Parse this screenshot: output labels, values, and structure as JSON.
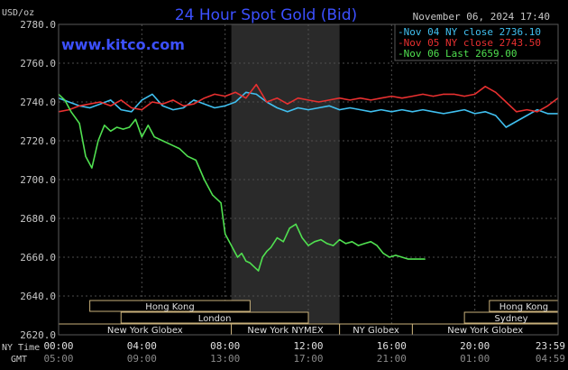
{
  "chart_data": {
    "type": "line",
    "title": "24 Hour Spot Gold (Bid)",
    "watermark": "www.kitco.com",
    "units_label": "USD/oz",
    "timestamp": "November 06, 2024 17:40",
    "ylim": [
      2620,
      2780
    ],
    "y_ticks": [
      "2780.0",
      "2760.0",
      "2740.0",
      "2720.0",
      "2700.0",
      "2680.0",
      "2660.0",
      "2640.0",
      "2620.0"
    ],
    "x_ticks_ny": [
      "00:00",
      "04:00",
      "08:00",
      "12:00",
      "16:00",
      "20:00",
      "23:59"
    ],
    "x_ticks_gmt": [
      "05:00",
      "09:00",
      "13:00",
      "17:00",
      "21:00",
      "01:00",
      "04:59"
    ],
    "x_label_ny": "NY Time",
    "x_label_gmt": "GMT",
    "grid": true,
    "legend_position": "top-right",
    "colors": {
      "background": "#000000",
      "grid": "#4d4d4d",
      "title": "#3c50ff",
      "watermark": "#3c50ff",
      "axis_text": "#c8c8c8",
      "nymex_band": "#2a2a2a",
      "session_box": "#c8b07a"
    },
    "series": [
      {
        "name": "Nov 04 NY close 2736.10",
        "color": "#40c0f0",
        "x": [
          0,
          0.5,
          1,
          1.5,
          2,
          2.5,
          3,
          3.5,
          4,
          4.5,
          5,
          5.5,
          6,
          6.5,
          7,
          7.5,
          8,
          8.5,
          9,
          9.5,
          10,
          10.5,
          11,
          11.5,
          12,
          12.5,
          13,
          13.5,
          14,
          14.5,
          15,
          15.5,
          16,
          16.5,
          17,
          17.5,
          18,
          18.5,
          19,
          19.5,
          20,
          20.5,
          21,
          21.5,
          22,
          22.5,
          23,
          23.5,
          23.99
        ],
        "values": [
          2742,
          2740,
          2738,
          2737,
          2739,
          2741,
          2736,
          2735,
          2741,
          2744,
          2738,
          2736,
          2737,
          2741,
          2739,
          2737,
          2738,
          2740,
          2745,
          2744,
          2740,
          2737,
          2735,
          2737,
          2736,
          2737,
          2738,
          2736,
          2737,
          2736,
          2735,
          2736,
          2735,
          2736,
          2735,
          2736,
          2735,
          2734,
          2735,
          2736,
          2734,
          2735,
          2733,
          2727,
          2730,
          2733,
          2736,
          2734,
          2734
        ]
      },
      {
        "name": "Nov 05 NY close 2743.50",
        "color": "#e83030",
        "x": [
          0,
          0.5,
          1,
          1.5,
          2,
          2.5,
          3,
          3.5,
          4,
          4.5,
          5,
          5.5,
          6,
          6.5,
          7,
          7.5,
          8,
          8.5,
          9,
          9.5,
          10,
          10.5,
          11,
          11.5,
          12,
          12.5,
          13,
          13.5,
          14,
          14.5,
          15,
          15.5,
          16,
          16.5,
          17,
          17.5,
          18,
          18.5,
          19,
          19.5,
          20,
          20.5,
          21,
          21.5,
          22,
          22.5,
          23,
          23.5,
          23.99
        ],
        "values": [
          2735,
          2736,
          2738,
          2739,
          2740,
          2738,
          2741,
          2737,
          2736,
          2740,
          2739,
          2741,
          2738,
          2739,
          2742,
          2744,
          2743,
          2745,
          2742,
          2749,
          2740,
          2742,
          2739,
          2742,
          2741,
          2740,
          2741,
          2742,
          2741,
          2742,
          2741,
          2742,
          2743,
          2742,
          2743,
          2744,
          2743,
          2744,
          2744,
          2743,
          2744,
          2748,
          2745,
          2740,
          2735,
          2736,
          2735,
          2738,
          2742
        ]
      },
      {
        "name": "Nov 06 Last 2659.00",
        "color": "#50e050",
        "x": [
          0,
          0.3,
          0.6,
          1.0,
          1.3,
          1.6,
          1.9,
          2.2,
          2.5,
          2.8,
          3.1,
          3.4,
          3.7,
          4.0,
          4.3,
          4.6,
          5.0,
          5.4,
          5.8,
          6.2,
          6.6,
          7.0,
          7.4,
          7.8,
          8.0,
          8.2,
          8.4,
          8.6,
          8.8,
          9.0,
          9.2,
          9.4,
          9.6,
          9.8,
          10.0,
          10.2,
          10.5,
          10.8,
          11.1,
          11.4,
          11.7,
          12.0,
          12.3,
          12.6,
          12.9,
          13.2,
          13.5,
          13.8,
          14.1,
          14.4,
          14.7,
          15.0,
          15.3,
          15.6,
          15.9,
          16.2,
          16.5,
          16.8,
          17.1,
          17.4,
          17.6
        ],
        "values": [
          2744,
          2741,
          2735,
          2729,
          2712,
          2706,
          2720,
          2728,
          2725,
          2727,
          2726,
          2727,
          2731,
          2722,
          2728,
          2722,
          2720,
          2718,
          2716,
          2712,
          2710,
          2700,
          2692,
          2688,
          2672,
          2668,
          2664,
          2660,
          2662,
          2658,
          2657,
          2655,
          2653,
          2660,
          2663,
          2665,
          2670,
          2668,
          2675,
          2677,
          2670,
          2666,
          2668,
          2669,
          2667,
          2666,
          2669,
          2667,
          2668,
          2666,
          2667,
          2668,
          2666,
          2662,
          2660,
          2661,
          2660,
          2659,
          2659,
          2659,
          2659
        ]
      }
    ],
    "sessions": [
      {
        "label": "Hong Kong",
        "start": 1.5,
        "end": 9.2
      },
      {
        "label": "Hong Kong",
        "start": 20.7,
        "end": 24.0
      },
      {
        "label": "London",
        "start": 3.0,
        "end": 12.0
      },
      {
        "label": "Sydney",
        "start": 19.5,
        "end": 24.0
      },
      {
        "label": "New York Globex",
        "start": 0.0,
        "end": 8.3
      },
      {
        "label": "New York NYMEX",
        "start": 8.3,
        "end": 13.5
      },
      {
        "label": "NY Globex",
        "start": 13.5,
        "end": 17.0
      },
      {
        "label": "New York Globex",
        "start": 17.0,
        "end": 24.0
      }
    ],
    "nymex_band": [
      8.3,
      13.5
    ]
  }
}
